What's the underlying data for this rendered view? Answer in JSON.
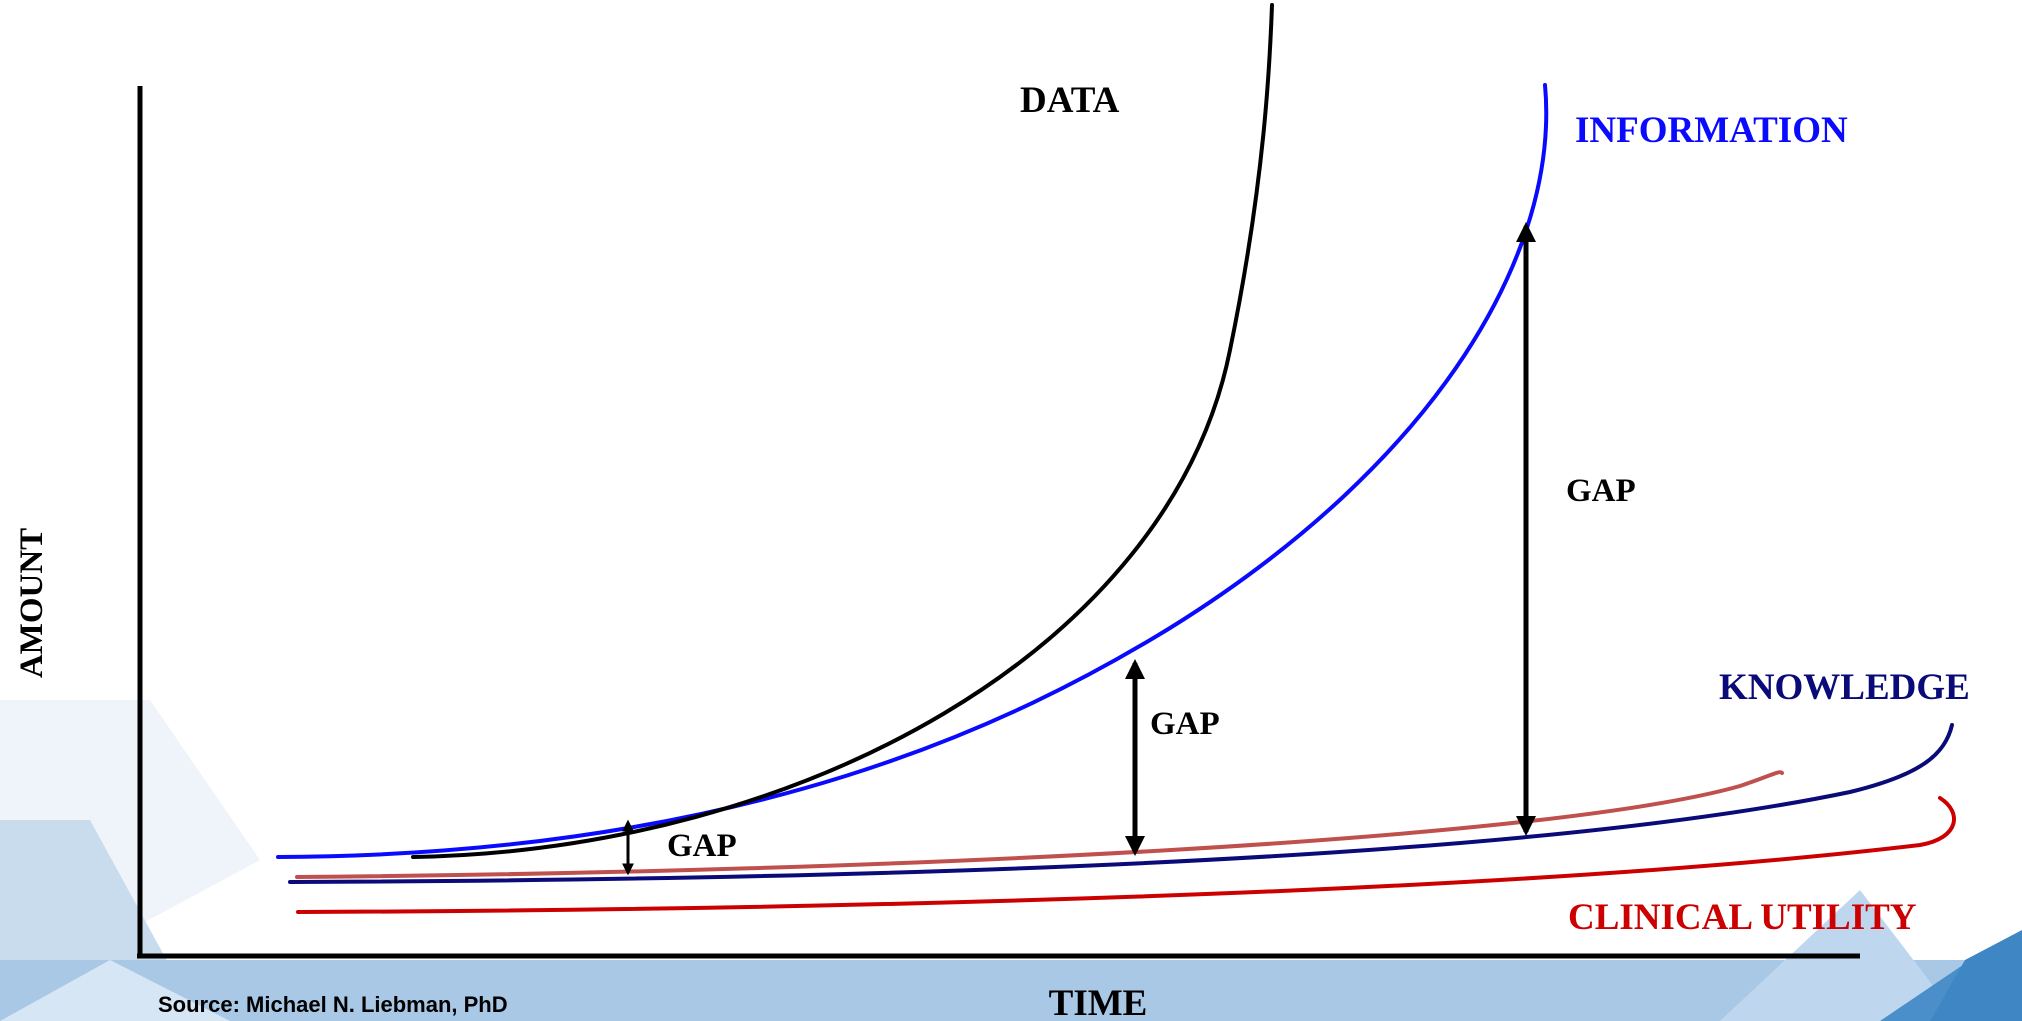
{
  "labels": {
    "data": "DATA",
    "information": "INFORMATION",
    "knowledge": "KNOWLEDGE",
    "clinical_utility": "CLINICAL UTILITY",
    "gap": "GAP",
    "x_axis": "TIME",
    "y_axis": "AMOUNT"
  },
  "source": "Source: Michael N. Liebman, PhD",
  "colors": {
    "data": "#000000",
    "information": "#0a0aff",
    "knowledge": "#0a0a78",
    "clinical_utility": "#cc0000",
    "knowledge_upper": "#c0504d",
    "axis": "#000000"
  }
}
